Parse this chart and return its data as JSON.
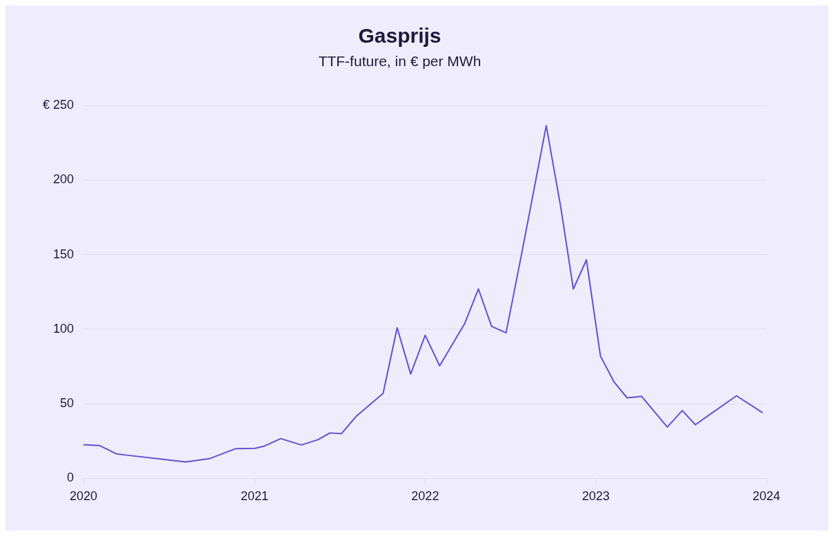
{
  "chart_data": {
    "type": "line",
    "title": "Gasprijs",
    "subtitle": "TTF-future, in € per MWh",
    "x": [
      "2020-01-01",
      "2020-02-05",
      "2020-03-11",
      "2020-04-02",
      "2020-06-17",
      "2020-08-07",
      "2020-09-26",
      "2020-11-21",
      "2021-01-02",
      "2021-01-22",
      "2021-02-26",
      "2021-04-11",
      "2021-05-17",
      "2021-06-11",
      "2021-07-06",
      "2021-08-06",
      "2021-10-03",
      "2021-11-02",
      "2021-12-01",
      "2022-01-01",
      "2022-02-01",
      "2022-03-26",
      "2022-04-25",
      "2022-05-23",
      "2022-06-23",
      "2022-07-26",
      "2022-09-17",
      "2022-10-18",
      "2022-11-14",
      "2022-12-12",
      "2023-01-11",
      "2023-02-09",
      "2023-03-09",
      "2023-04-09",
      "2023-06-03",
      "2023-07-05",
      "2023-08-02",
      "2023-10-29",
      "2023-12-24"
    ],
    "series": [
      {
        "color": "#6152cc",
        "values": [
          22.6,
          22,
          16.5,
          15.6,
          12.9,
          11,
          13.2,
          19.9,
          20.2,
          21.7,
          26.7,
          22.4,
          26,
          30.5,
          30,
          41.5,
          57,
          101,
          70,
          96,
          75.5,
          103.5,
          127,
          102,
          97.6,
          150,
          236.5,
          182,
          127,
          146.5,
          82,
          64.7,
          54,
          55,
          34.4,
          45.5,
          36,
          55.4,
          44
        ]
      }
    ],
    "xlim": [
      "2020-01-01",
      "2024-01-01"
    ],
    "xticks": [
      "2020",
      "2021",
      "2022",
      "2023",
      "2024"
    ],
    "ylim": [
      0,
      250
    ],
    "yticks": [
      0,
      50,
      100,
      150,
      200,
      {
        "value": 250,
        "label": "€ 250"
      }
    ],
    "grid": "y",
    "legend": false,
    "marker": "none",
    "line_style": "solid"
  }
}
